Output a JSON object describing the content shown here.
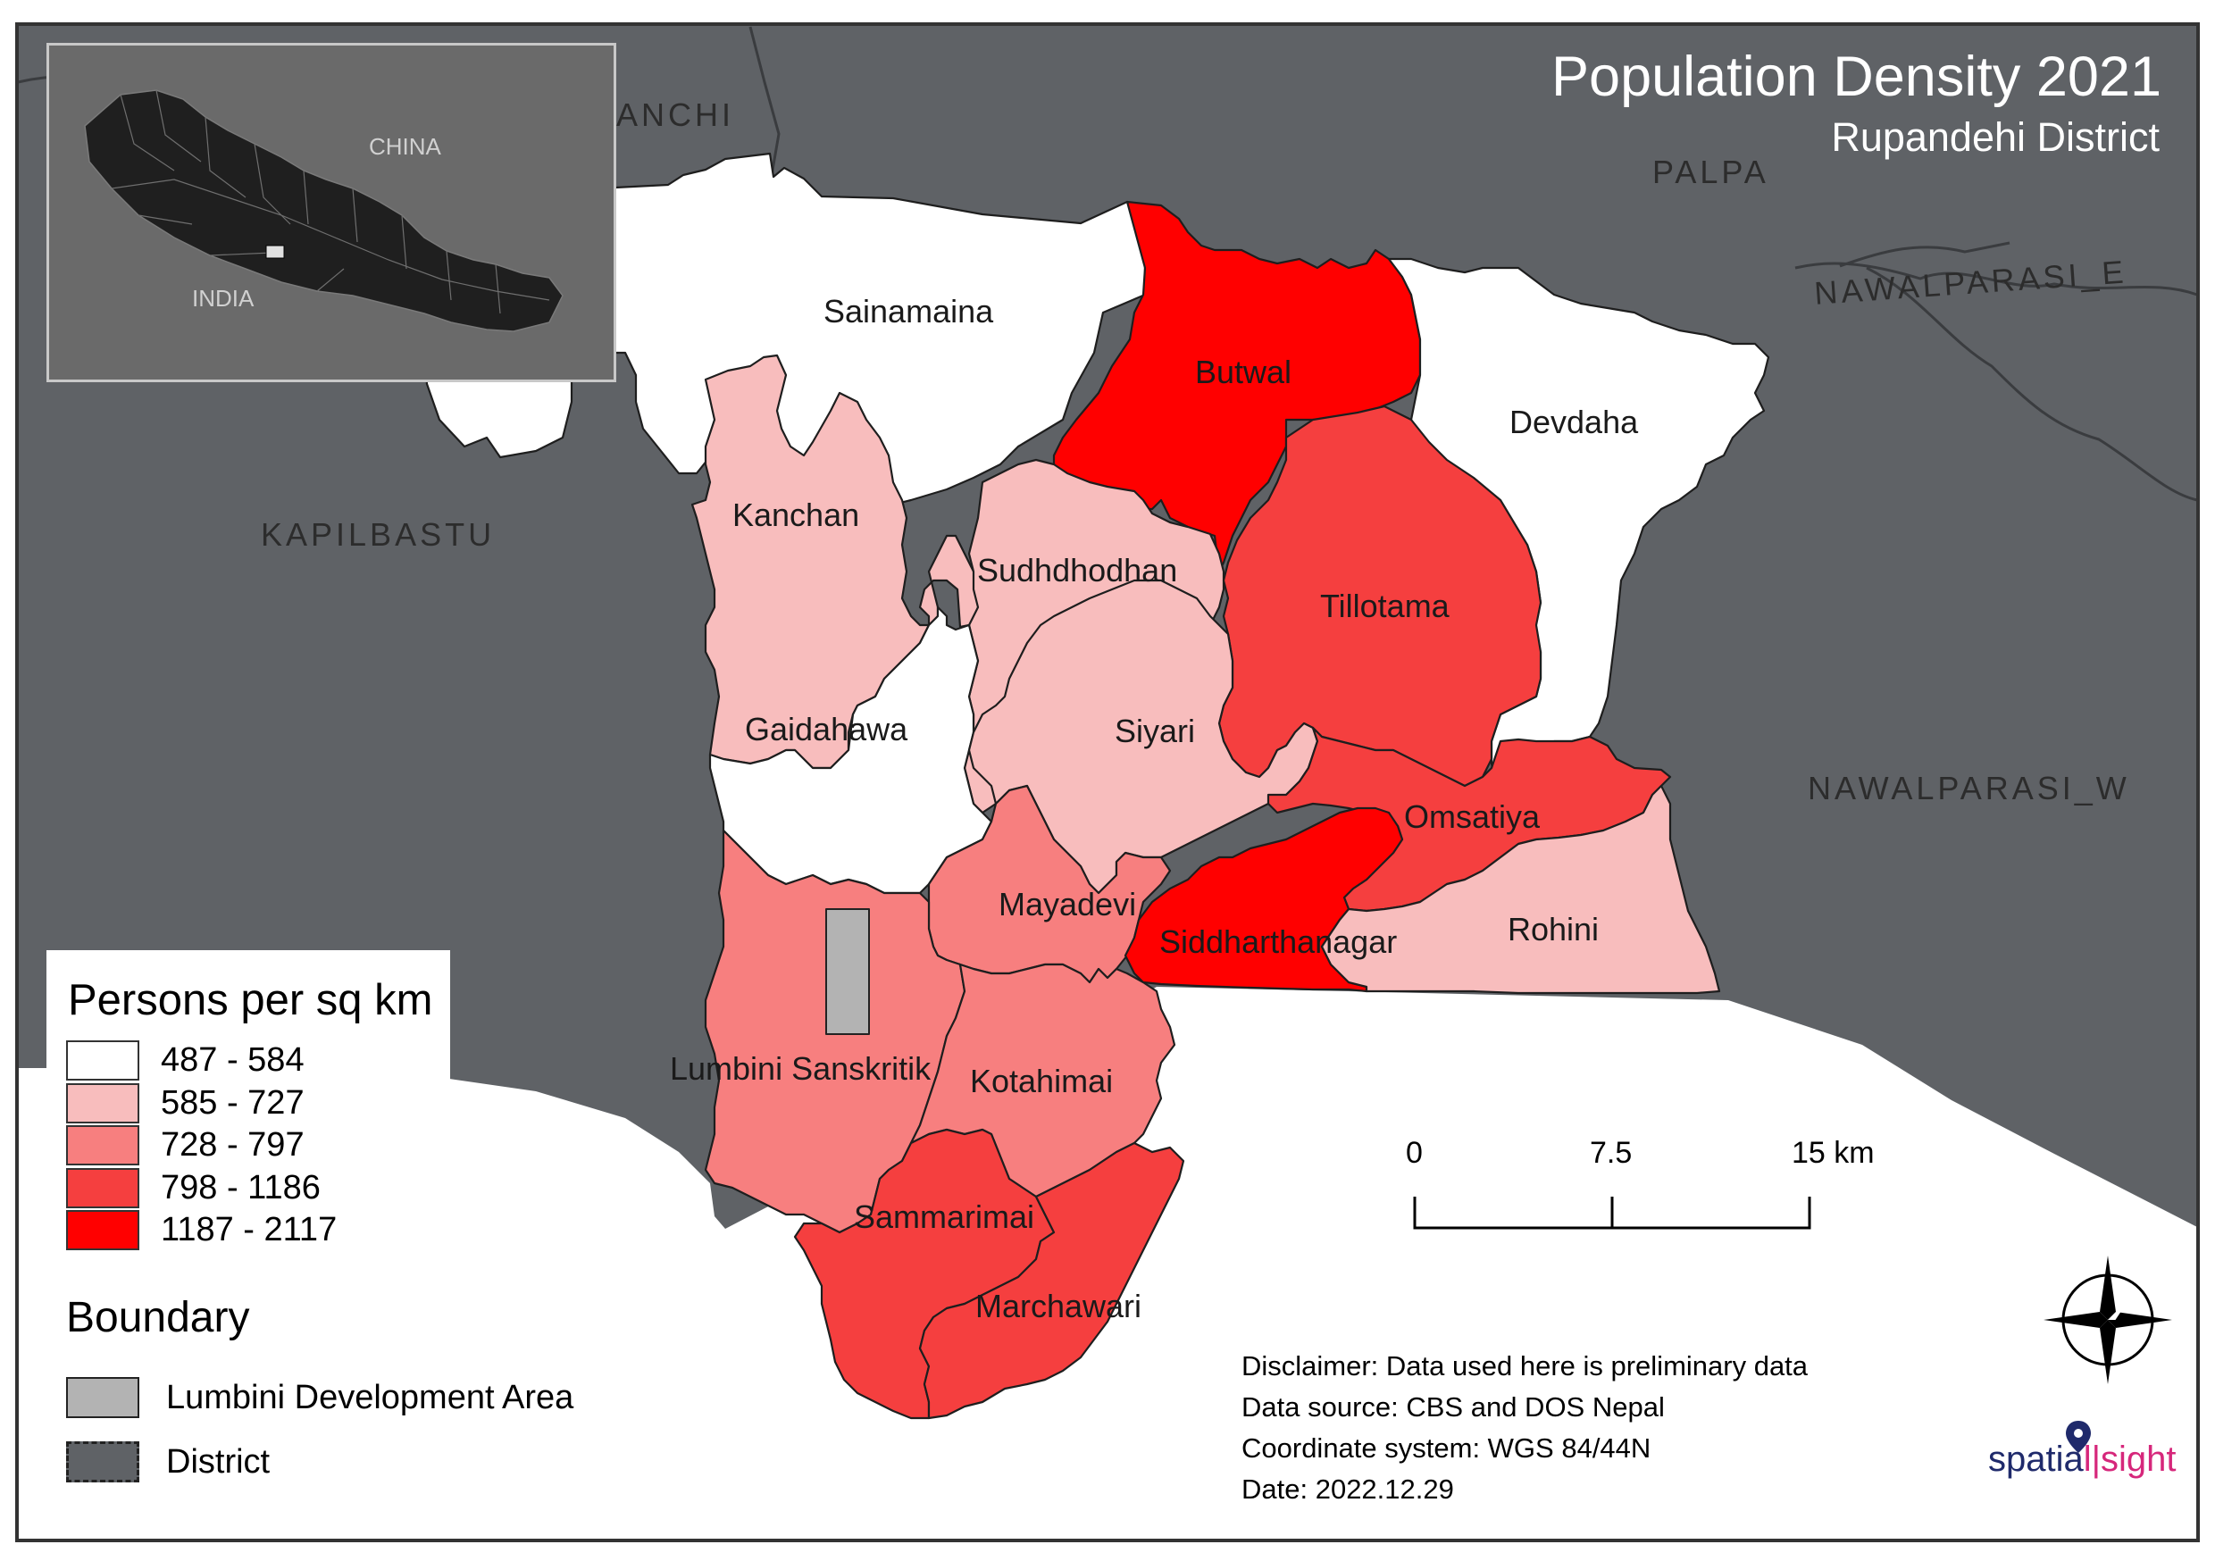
{
  "title": "Population Density 2021",
  "subtitle": "Rupandehi District",
  "colors": {
    "background_district": "#5f6266",
    "district_border": "#3a3c3f",
    "inset_bg": "#6a6a6a",
    "class_1": "#ffffff",
    "class_2": "#f8bdbd",
    "class_3": "#f77f7f",
    "class_4": "#f53f3f",
    "class_5": "#ff0000",
    "lumbini_area": "#b3b3b3"
  },
  "inset": {
    "china_label": "CHINA",
    "india_label": "INDIA"
  },
  "neighbors": {
    "arghakhanchi": "ANCHI",
    "palpa": "PALPA",
    "kapilbastu": "KAPILBASTU",
    "nawalparasi_e": "NAWALPARASI_E",
    "nawalparasi_w": "NAWALPARASI_W"
  },
  "municipalities": [
    {
      "name": "Sainamaina",
      "density_class": 1
    },
    {
      "name": "Butwal",
      "density_class": 5
    },
    {
      "name": "Devdaha",
      "density_class": 1
    },
    {
      "name": "Kanchan",
      "density_class": 2
    },
    {
      "name": "Sudhdhodhan",
      "density_class": 2
    },
    {
      "name": "Tillotama",
      "density_class": 4
    },
    {
      "name": "Gaidahawa",
      "density_class": 1
    },
    {
      "name": "Siyari",
      "density_class": 2
    },
    {
      "name": "Omsatiya",
      "density_class": 4
    },
    {
      "name": "Mayadevi",
      "density_class": 3
    },
    {
      "name": "Siddharthanagar",
      "density_class": 5
    },
    {
      "name": "Rohini",
      "density_class": 2
    },
    {
      "name": "Lumbini Sanskritik",
      "density_class": 3
    },
    {
      "name": "Kotahimai",
      "density_class": 3
    },
    {
      "name": "Sammarimai",
      "density_class": 4
    },
    {
      "name": "Marchawari",
      "density_class": 4
    }
  ],
  "legend": {
    "heading": "Persons per sq km",
    "classes": [
      {
        "label": "487 - 584",
        "color": "#ffffff"
      },
      {
        "label": "585 - 727",
        "color": "#f8bdbd"
      },
      {
        "label": "728 - 797",
        "color": "#f77f7f"
      },
      {
        "label": "798 - 1186",
        "color": "#f53f3f"
      },
      {
        "label": "1187 - 2117",
        "color": "#ff0000"
      }
    ]
  },
  "boundary": {
    "heading": "Boundary",
    "lumbini_label": "Lumbini Development Area",
    "district_label": "District"
  },
  "scale_bar": {
    "labels": [
      "0",
      "7.5",
      "15 km"
    ]
  },
  "north_arrow_icon": "compass-rose-icon",
  "notes": {
    "disclaimer": "Disclaimer: Data used here is preliminary data",
    "source": "Data source: CBS  and DOS Nepal",
    "crs": "Coordinate system: WGS 84/44N",
    "date": "Date: 2022.12.29"
  },
  "logo": {
    "part1": "spatia",
    "part2": "l",
    "part3": "sight"
  }
}
